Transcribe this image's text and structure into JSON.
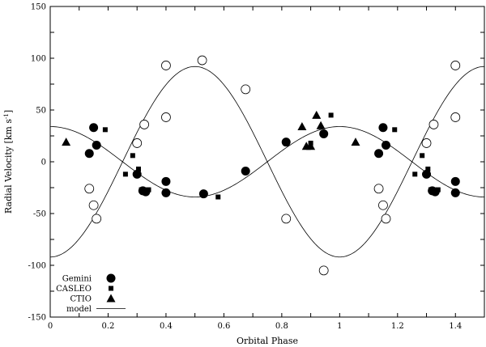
{
  "chart_data": {
    "type": "scatter",
    "xlabel": "Orbital Phase",
    "ylabel": "Radial Velocity [km s",
    "ylabel_sup": "-1",
    "ylabel_end": "]",
    "xlim": [
      0,
      1.5
    ],
    "ylim": [
      -150,
      150
    ],
    "xticks": [
      0,
      0.2,
      0.4,
      0.6,
      0.8,
      1,
      1.2,
      1.4
    ],
    "xtick_labels": [
      "0",
      "0.2",
      "0.4",
      "0.6",
      "0.8",
      "1",
      "1.2",
      "1.4"
    ],
    "yticks": [
      -150,
      -100,
      -50,
      0,
      50,
      100,
      150
    ],
    "ytick_labels": [
      "-150",
      "-100",
      "-50",
      "0",
      "50",
      "100",
      "150"
    ],
    "legend": [
      "Gemini",
      "CASLEO",
      "CTIO",
      "model"
    ],
    "legend_position": "bottom-left",
    "series": [
      {
        "name": "Gemini",
        "marker": "filled-circle",
        "points": [
          [
            0.135,
            8
          ],
          [
            0.15,
            33
          ],
          [
            0.16,
            16
          ],
          [
            0.3,
            -12
          ],
          [
            0.32,
            -28
          ],
          [
            0.33,
            -29
          ],
          [
            0.4,
            -19
          ],
          [
            0.4,
            -30
          ],
          [
            0.53,
            -31
          ],
          [
            0.675,
            -9
          ],
          [
            0.815,
            19
          ],
          [
            0.945,
            27
          ],
          [
            1.135,
            8
          ],
          [
            1.15,
            33
          ],
          [
            1.16,
            16
          ],
          [
            1.3,
            -12
          ],
          [
            1.32,
            -28
          ],
          [
            1.33,
            -29
          ],
          [
            1.4,
            -19
          ],
          [
            1.4,
            -30
          ]
        ]
      },
      {
        "name": "CASLEO",
        "marker": "filled-square",
        "points": [
          [
            0.19,
            31
          ],
          [
            0.26,
            -12
          ],
          [
            0.285,
            6
          ],
          [
            0.305,
            -7
          ],
          [
            0.315,
            -27
          ],
          [
            0.34,
            -27
          ],
          [
            0.58,
            -34
          ],
          [
            0.9,
            18
          ],
          [
            0.97,
            45
          ],
          [
            1.19,
            31
          ],
          [
            1.26,
            -12
          ],
          [
            1.285,
            6
          ],
          [
            1.305,
            -7
          ],
          [
            1.315,
            -27
          ],
          [
            1.34,
            -27
          ]
        ]
      },
      {
        "name": "CTIO",
        "marker": "filled-triangle",
        "points": [
          [
            0.055,
            19
          ],
          [
            0.87,
            34
          ],
          [
            0.885,
            15
          ],
          [
            0.9,
            15
          ],
          [
            0.92,
            45
          ],
          [
            0.935,
            35
          ],
          [
            1.055,
            19
          ]
        ]
      },
      {
        "name": "",
        "marker": "open-circle",
        "points": [
          [
            0.135,
            -26
          ],
          [
            0.15,
            -42
          ],
          [
            0.16,
            -55
          ],
          [
            0.3,
            18
          ],
          [
            0.325,
            36
          ],
          [
            0.4,
            43
          ],
          [
            0.4,
            93
          ],
          [
            0.525,
            98
          ],
          [
            0.675,
            70
          ],
          [
            0.815,
            -55
          ],
          [
            0.945,
            -105
          ],
          [
            1.135,
            -26
          ],
          [
            1.15,
            -42
          ],
          [
            1.16,
            -55
          ],
          [
            1.3,
            18
          ],
          [
            1.325,
            36
          ],
          [
            1.4,
            43
          ],
          [
            1.4,
            93
          ]
        ]
      },
      {
        "name": "model",
        "marker": "line",
        "curves": [
          {
            "gamma": 0,
            "amplitude": 34,
            "peak_phase": 0
          },
          {
            "gamma": 0,
            "amplitude": 92,
            "peak_phase": 0.5
          }
        ]
      }
    ]
  }
}
